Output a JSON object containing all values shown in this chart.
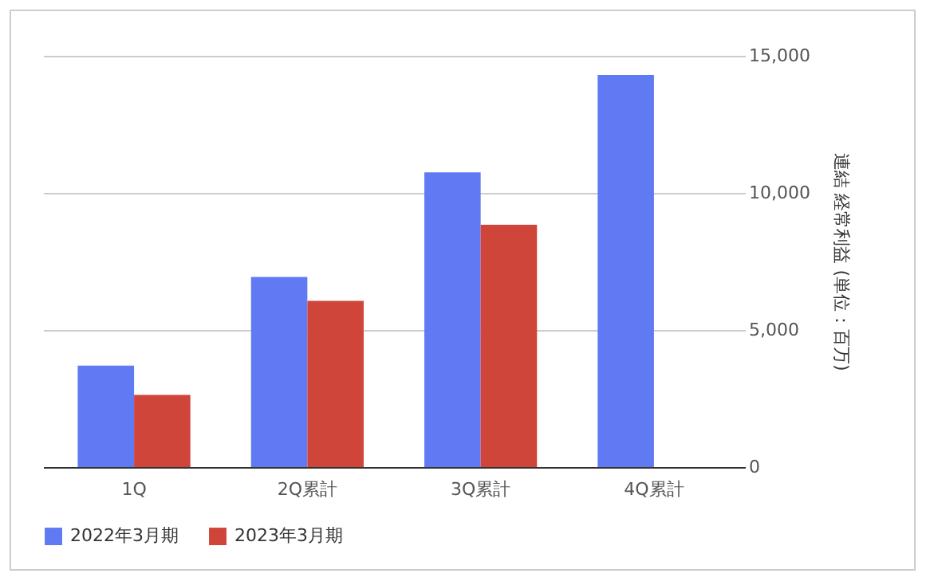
{
  "chart_data": {
    "type": "bar",
    "categories": [
      "1Q",
      "2Q累計",
      "3Q累計",
      "4Q累計"
    ],
    "series": [
      {
        "name": "2022年3月期",
        "color": "#5f7af2",
        "values": [
          3700,
          6930,
          10750,
          14300
        ]
      },
      {
        "name": "2023年3月期",
        "color": "#d0453a",
        "values": [
          2630,
          6060,
          8840,
          null
        ]
      }
    ],
    "ylabel": "連結 経常利益 (単位：百万)",
    "ylim": [
      0,
      15000
    ],
    "yticks": [
      0,
      {
        "value": 5000,
        "label": "5,000"
      },
      {
        "value": 10000,
        "label": "10,000"
      },
      {
        "value": 15000,
        "label": "15,000"
      }
    ],
    "grid": "y",
    "legend": "bottom"
  }
}
